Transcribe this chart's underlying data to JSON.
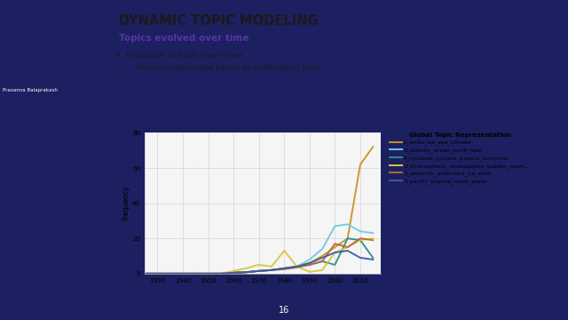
{
  "title_main": "DYNAMIC TOPIC MODELING",
  "title_sub": "Topics evolved over time",
  "bullet1": "Evolution of topic over time",
  "bullet2": "Timeline calculated based on publication year",
  "chart_title": "Global Topic Representation",
  "ylabel": "Frequency",
  "ylim": [
    0,
    80
  ],
  "xlim": [
    1925,
    2018
  ],
  "xticks": [
    1930,
    1940,
    1950,
    1960,
    1970,
    1980,
    1990,
    2000,
    2010
  ],
  "yticks": [
    0,
    20,
    40,
    60,
    80
  ],
  "bg_slide": "#1c2060",
  "bg_content": "#ffffff",
  "accent_bar_top": "#7240b0",
  "accent_teal": "#3aada8",
  "bottom_bar": "#6035b0",
  "series": [
    {
      "label": "0_arctic_ice_sea_climate",
      "color": "#c8901c",
      "linewidth": 1.4,
      "data": {
        "years": [
          1925,
          1930,
          1935,
          1940,
          1945,
          1950,
          1955,
          1960,
          1965,
          1970,
          1975,
          1980,
          1985,
          1990,
          1995,
          2000,
          2005,
          2010,
          2015
        ],
        "values": [
          0,
          0,
          0,
          0,
          0,
          0,
          0,
          0.5,
          0.8,
          1.5,
          2,
          3,
          4,
          6,
          10,
          15,
          20,
          62,
          72
        ]
      }
    },
    {
      "label": "1_atlantic_ocean_north_heat",
      "color": "#6ec8e0",
      "linewidth": 1.4,
      "data": {
        "years": [
          1925,
          1930,
          1935,
          1940,
          1945,
          1950,
          1955,
          1960,
          1965,
          1970,
          1975,
          1980,
          1985,
          1990,
          1995,
          2000,
          2005,
          2010,
          2015
        ],
        "values": [
          0,
          0,
          0,
          0,
          0,
          0,
          0,
          0.5,
          0.8,
          1.5,
          2,
          3,
          4,
          8,
          14,
          27,
          28,
          24,
          23
        ]
      }
    },
    {
      "label": "4_cyclones_cyclone_tropical_hurricane",
      "color": "#2a8c88",
      "linewidth": 1.4,
      "data": {
        "years": [
          1925,
          1930,
          1935,
          1940,
          1945,
          1950,
          1955,
          1960,
          1965,
          1970,
          1975,
          1980,
          1985,
          1990,
          1995,
          2000,
          2005,
          2010,
          2015
        ],
        "values": [
          0,
          0,
          0,
          0,
          0,
          0,
          0,
          0.5,
          0.8,
          1.5,
          2,
          3,
          4,
          5,
          7,
          5,
          20,
          19,
          9
        ]
      }
    },
    {
      "label": "3_stratospheric_stratosphere_sudden_warm...",
      "color": "#d4c838",
      "linewidth": 1.4,
      "data": {
        "years": [
          1925,
          1930,
          1935,
          1940,
          1945,
          1950,
          1955,
          1960,
          1965,
          1970,
          1975,
          1980,
          1985,
          1990,
          1995,
          2000,
          2005,
          2010,
          2015
        ],
        "values": [
          0,
          0,
          0,
          0,
          0,
          0,
          0,
          1.5,
          3,
          5,
          4,
          13,
          4,
          1,
          2,
          12,
          15,
          19,
          20
        ]
      }
    },
    {
      "label": "2_antarctic_antarctica_ice_west",
      "color": "#b86830",
      "linewidth": 1.4,
      "data": {
        "years": [
          1925,
          1930,
          1935,
          1940,
          1945,
          1950,
          1955,
          1960,
          1965,
          1970,
          1975,
          1980,
          1985,
          1990,
          1995,
          2000,
          2005,
          2010,
          2015
        ],
        "values": [
          0,
          0,
          0,
          0,
          0,
          0,
          0,
          0.5,
          0.8,
          1.5,
          2,
          2.5,
          3.5,
          5,
          7,
          17,
          15,
          20,
          19
        ]
      }
    },
    {
      "label": "5_pacific_tropical_north_warm",
      "color": "#3858a8",
      "linewidth": 1.4,
      "data": {
        "years": [
          1925,
          1930,
          1935,
          1940,
          1945,
          1950,
          1955,
          1960,
          1965,
          1970,
          1975,
          1980,
          1985,
          1990,
          1995,
          2000,
          2005,
          2010,
          2015
        ],
        "values": [
          0,
          0,
          0,
          0,
          0,
          0,
          0,
          0.5,
          0.8,
          1.5,
          2,
          3,
          4,
          6,
          9,
          12,
          13,
          9,
          8
        ]
      }
    }
  ]
}
